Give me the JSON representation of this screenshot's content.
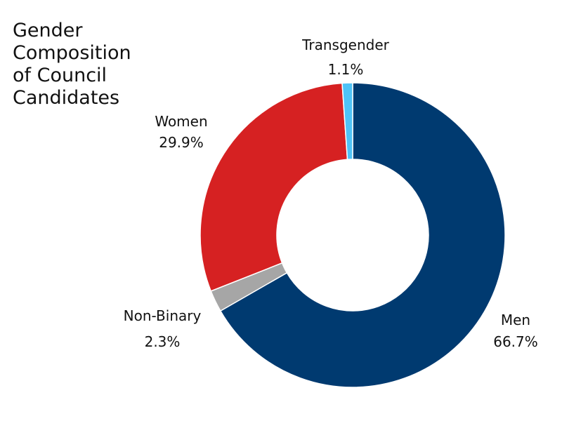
{
  "chart_data": {
    "type": "pie",
    "variant": "donut",
    "title": "Gender\nComposition\nof Council\nCandidates",
    "slices": [
      {
        "label": "Men",
        "value": 66.7,
        "value_label": "66.7%",
        "color": "#003a70"
      },
      {
        "label": "Non-Binary",
        "value": 2.3,
        "value_label": "2.3%",
        "color": "#a6a6a6"
      },
      {
        "label": "Women",
        "value": 29.9,
        "value_label": "29.9%",
        "color": "#d62122"
      },
      {
        "label": "Transgender",
        "value": 1.1,
        "value_label": "1.1%",
        "color": "#4fc3f7"
      }
    ],
    "start_angle_deg": 0,
    "direction": "clockwise",
    "legend": "none"
  }
}
